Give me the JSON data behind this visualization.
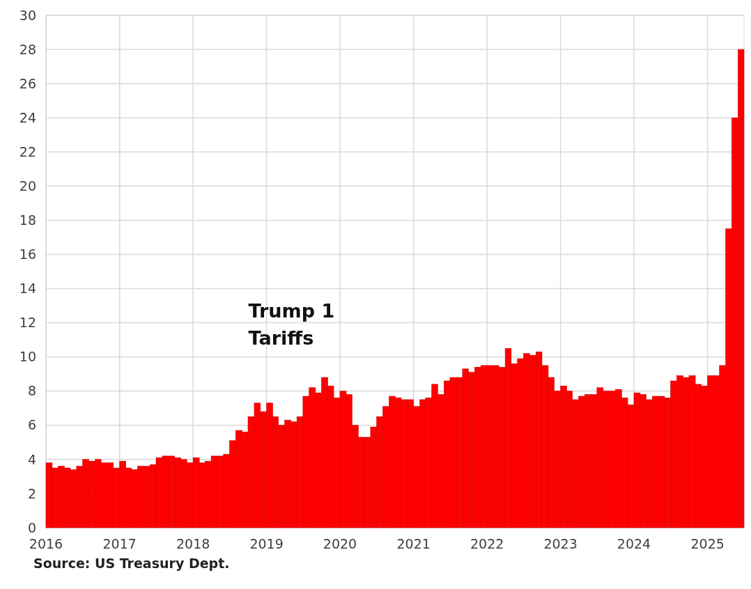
{
  "chart_data": {
    "type": "bar",
    "color": "#ff0000",
    "x": [
      "2016-01",
      "2016-02",
      "2016-03",
      "2016-04",
      "2016-05",
      "2016-06",
      "2016-07",
      "2016-08",
      "2016-09",
      "2016-10",
      "2016-11",
      "2016-12",
      "2017-01",
      "2017-02",
      "2017-03",
      "2017-04",
      "2017-05",
      "2017-06",
      "2017-07",
      "2017-08",
      "2017-09",
      "2017-10",
      "2017-11",
      "2017-12",
      "2018-01",
      "2018-02",
      "2018-03",
      "2018-04",
      "2018-05",
      "2018-06",
      "2018-07",
      "2018-08",
      "2018-09",
      "2018-10",
      "2018-11",
      "2018-12",
      "2019-01",
      "2019-02",
      "2019-03",
      "2019-04",
      "2019-05",
      "2019-06",
      "2019-07",
      "2019-08",
      "2019-09",
      "2019-10",
      "2019-11",
      "2019-12",
      "2020-01",
      "2020-02",
      "2020-03",
      "2020-04",
      "2020-05",
      "2020-06",
      "2020-07",
      "2020-08",
      "2020-09",
      "2020-10",
      "2020-11",
      "2020-12",
      "2021-01",
      "2021-02",
      "2021-03",
      "2021-04",
      "2021-05",
      "2021-06",
      "2021-07",
      "2021-08",
      "2021-09",
      "2021-10",
      "2021-11",
      "2021-12",
      "2022-01",
      "2022-02",
      "2022-03",
      "2022-04",
      "2022-05",
      "2022-06",
      "2022-07",
      "2022-08",
      "2022-09",
      "2022-10",
      "2022-11",
      "2022-12",
      "2023-01",
      "2023-02",
      "2023-03",
      "2023-04",
      "2023-05",
      "2023-06",
      "2023-07",
      "2023-08",
      "2023-09",
      "2023-10",
      "2023-11",
      "2023-12",
      "2024-01",
      "2024-02",
      "2024-03",
      "2024-04",
      "2024-05",
      "2024-06",
      "2024-07",
      "2024-08",
      "2024-09",
      "2024-10",
      "2024-11",
      "2024-12",
      "2025-01",
      "2025-02",
      "2025-03",
      "2025-04",
      "2025-05",
      "2025-06"
    ],
    "values": [
      3.8,
      3.5,
      3.6,
      3.5,
      3.4,
      3.6,
      4.0,
      3.9,
      4.0,
      3.8,
      3.8,
      3.5,
      3.9,
      3.5,
      3.4,
      3.6,
      3.6,
      3.7,
      4.1,
      4.2,
      4.2,
      4.1,
      4.0,
      3.8,
      4.1,
      3.8,
      3.9,
      4.2,
      4.2,
      4.3,
      5.1,
      5.7,
      5.6,
      6.5,
      7.3,
      6.8,
      7.3,
      6.5,
      6.0,
      6.3,
      6.2,
      6.5,
      7.7,
      8.2,
      7.9,
      8.8,
      8.3,
      7.6,
      8.0,
      7.8,
      6.0,
      5.3,
      5.3,
      5.9,
      6.5,
      7.1,
      7.7,
      7.6,
      7.5,
      7.5,
      7.1,
      7.5,
      7.6,
      8.4,
      7.8,
      8.6,
      8.8,
      8.8,
      9.3,
      9.1,
      9.4,
      9.5,
      9.5,
      9.5,
      9.4,
      10.5,
      9.6,
      9.9,
      10.2,
      10.1,
      10.3,
      9.5,
      8.8,
      8.0,
      8.3,
      8.0,
      7.5,
      7.7,
      7.8,
      7.8,
      8.2,
      8.0,
      8.0,
      8.1,
      7.6,
      7.2,
      7.9,
      7.8,
      7.5,
      7.7,
      7.7,
      7.6,
      8.6,
      8.9,
      8.8,
      8.9,
      8.4,
      8.3,
      8.9,
      8.9,
      9.5,
      17.5,
      24,
      28
    ],
    "xlim": [
      "2016-01",
      "2025-07"
    ],
    "xticks": [
      "2016",
      "2017",
      "2018",
      "2019",
      "2020",
      "2021",
      "2022",
      "2023",
      "2024",
      "2025"
    ],
    "ylim": [
      0,
      30
    ],
    "yticks": [
      0,
      2,
      4,
      6,
      8,
      10,
      12,
      14,
      16,
      18,
      20,
      22,
      24,
      26,
      28,
      30
    ],
    "grid": true,
    "annotations": [
      "Trump 1 Tariffs",
      "Source: US Treasury Dept."
    ]
  }
}
